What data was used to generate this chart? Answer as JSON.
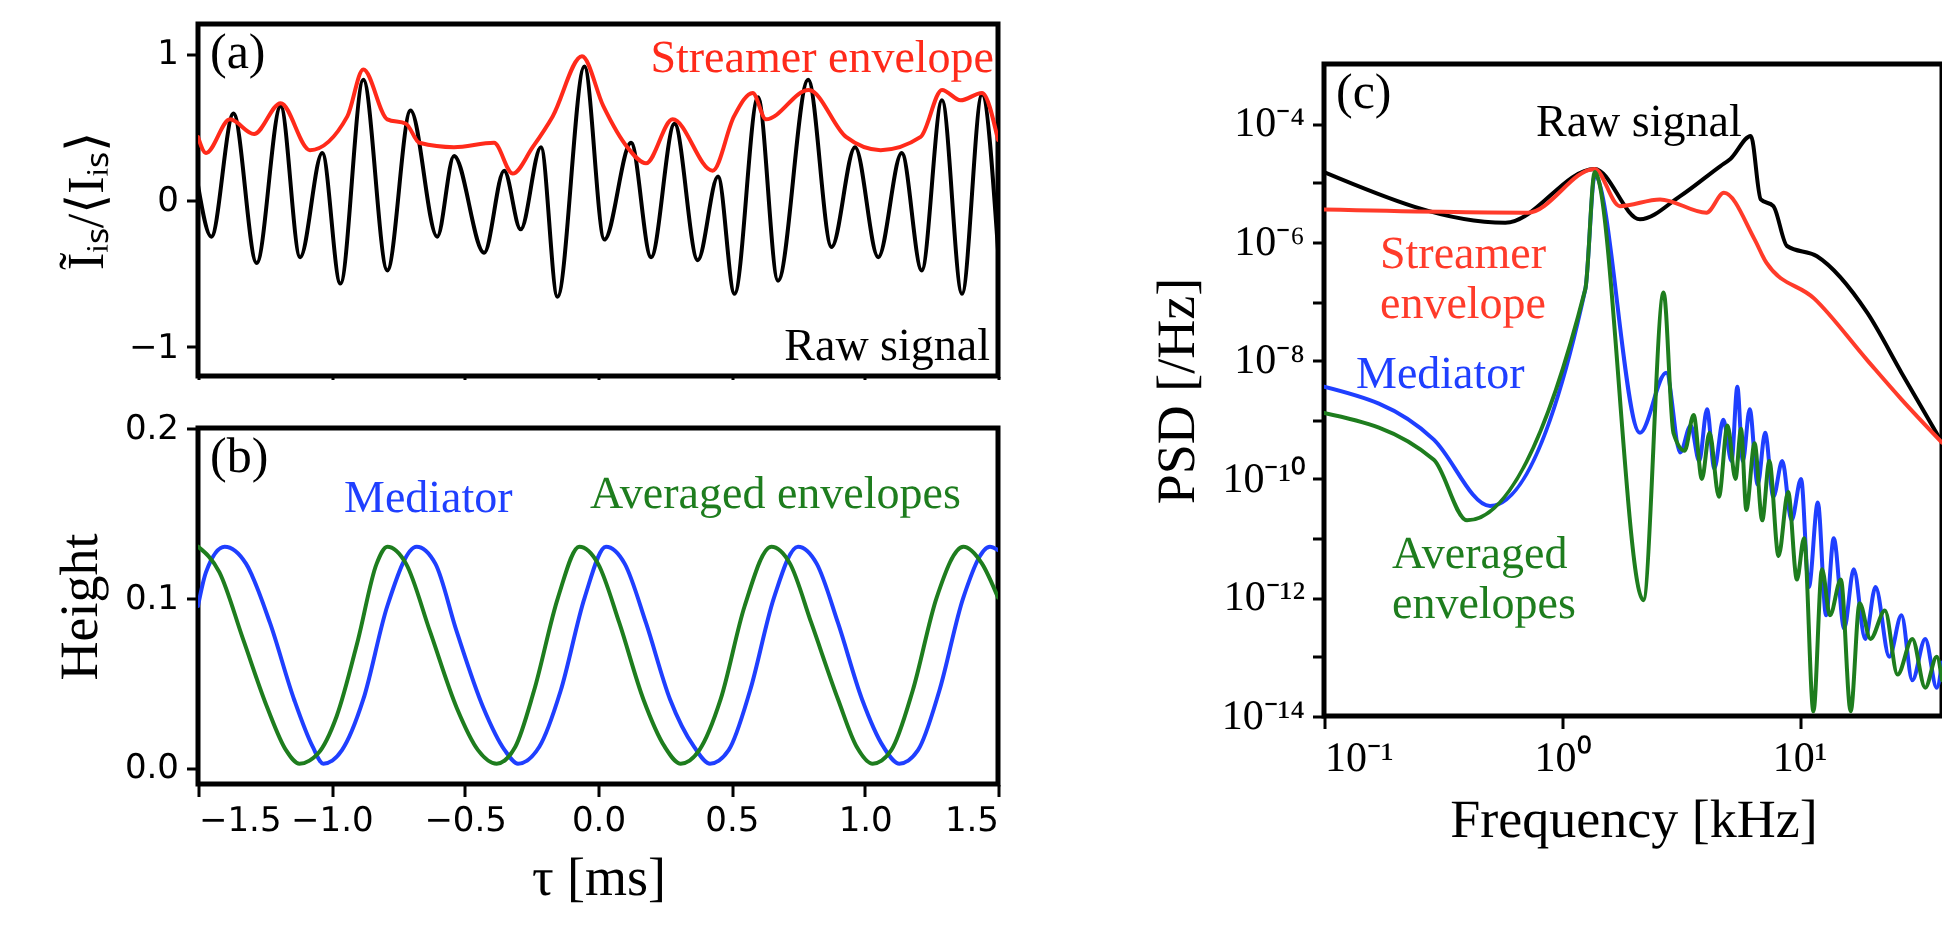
{
  "chart_data": [
    {
      "type": "line",
      "ylabel": "Ĩᵢₛ/⟨Iᵢₛ⟩",
      "annotations": [
        "(a)"
      ],
      "xlim": [
        -1.5,
        1.5
      ],
      "xticks": [
        -1.5,
        -1,
        -0.5,
        0,
        0.5,
        1,
        1.5
      ],
      "ylim": [
        -1.2,
        1.2
      ],
      "yticks": [
        {
          "value": -1,
          "label": "−1"
        },
        0,
        1
      ],
      "tick_labels": "y",
      "legend": false,
      "grid": false,
      "marker": "none",
      "line_style": "solid",
      "series": [
        {
          "name": "Raw signal",
          "color": "#000000",
          "x": [
            -1.5,
            -1.45,
            -1.367,
            -1.28,
            -1.19,
            -1.117,
            -1.034,
            -0.966,
            -0.88,
            -0.79,
            -0.703,
            -0.603,
            -0.54,
            -0.427,
            -0.352,
            -0.29,
            -0.214,
            -0.152,
            -0.051,
            0.024,
            0.124,
            0.199,
            0.287,
            0.374,
            0.45,
            0.512,
            0.6,
            0.675,
            0.788,
            0.876,
            0.964,
            1.051,
            1.139,
            1.214,
            1.29,
            1.365,
            1.44,
            1.5
          ],
          "values": [
            0.1,
            -0.25,
            0.59,
            -0.43,
            0.64,
            -0.39,
            0.32,
            -0.57,
            0.82,
            -0.48,
            0.61,
            -0.25,
            0.3,
            -0.36,
            0.2,
            -0.2,
            0.36,
            -0.66,
            0.91,
            -0.27,
            0.39,
            -0.39,
            0.52,
            -0.41,
            0.16,
            -0.64,
            0.7,
            -0.55,
            0.82,
            -0.32,
            0.36,
            -0.39,
            0.32,
            -0.48,
            0.68,
            -0.64,
            0.72,
            -0.34
          ]
        },
        {
          "name": "Streamer envelope",
          "color": "#ff2a1a",
          "x": [
            -1.5,
            -1.47,
            -1.38,
            -1.29,
            -1.19,
            -1.08,
            -0.94,
            -0.88,
            -0.79,
            -0.72,
            -0.67,
            -0.54,
            -0.39,
            -0.32,
            -0.245,
            -0.17,
            -0.06,
            0.02,
            0.11,
            0.18,
            0.28,
            0.43,
            0.51,
            0.58,
            0.63,
            0.79,
            0.93,
            1.06,
            1.21,
            1.29,
            1.36,
            1.44,
            1.5
          ],
          "values": [
            0.43,
            0.32,
            0.55,
            0.45,
            0.66,
            0.34,
            0.57,
            0.89,
            0.55,
            0.52,
            0.39,
            0.36,
            0.39,
            0.18,
            0.36,
            0.57,
            0.98,
            0.64,
            0.36,
            0.25,
            0.55,
            0.2,
            0.57,
            0.73,
            0.55,
            0.75,
            0.43,
            0.34,
            0.43,
            0.75,
            0.68,
            0.73,
            0.41
          ]
        }
      ]
    },
    {
      "type": "line",
      "xlabel": "τ [ms]",
      "ylabel": "Height",
      "annotations": [
        "(b)"
      ],
      "xlim": [
        -1.5,
        1.5
      ],
      "xticks": [
        {
          "value": -1.5,
          "label": "−1.5"
        },
        {
          "value": -1,
          "label": "−1.0"
        },
        {
          "value": -0.5,
          "label": "−0.5"
        },
        {
          "value": 0,
          "label": "0.0"
        },
        {
          "value": 0.5,
          "label": "0.5"
        },
        {
          "value": 1,
          "label": "1.0"
        },
        {
          "value": 1.5,
          "label": "1.5"
        }
      ],
      "ylim": [
        -0.01,
        0.2
      ],
      "yticks": [
        {
          "value": 0,
          "label": "0.0"
        },
        0.1,
        0.2
      ],
      "legend": false,
      "grid": false,
      "marker": "none",
      "line_style": "solid",
      "series": [
        {
          "name": "Mediator",
          "color": "#1f3fff",
          "x": [
            -1.5,
            -1.47,
            -1.4,
            -1.32,
            -1.23,
            -1.14,
            -1.07,
            -1.03,
            -0.96,
            -0.88,
            -0.79,
            -0.68,
            -0.61,
            -0.53,
            -0.43,
            -0.35,
            -0.3,
            -0.22,
            -0.14,
            -0.05,
            0.03,
            0.1,
            0.18,
            0.27,
            0.36,
            0.42,
            0.49,
            0.57,
            0.66,
            0.75,
            0.82,
            0.9,
            0.99,
            1.07,
            1.13,
            1.2,
            1.28,
            1.37,
            1.47,
            1.5
          ],
          "values": [
            0.095,
            0.115,
            0.13,
            0.12,
            0.085,
            0.04,
            0.012,
            0.002,
            0.01,
            0.04,
            0.095,
            0.13,
            0.12,
            0.08,
            0.035,
            0.01,
            0.002,
            0.012,
            0.045,
            0.1,
            0.13,
            0.12,
            0.085,
            0.04,
            0.012,
            0.002,
            0.01,
            0.045,
            0.1,
            0.13,
            0.12,
            0.085,
            0.04,
            0.012,
            0.002,
            0.01,
            0.045,
            0.1,
            0.13,
            0.128
          ]
        },
        {
          "name": "Averaged envelopes",
          "color": "#1e7d1e",
          "x": [
            -1.5,
            -1.42,
            -1.33,
            -1.24,
            -1.17,
            -1.12,
            -1.05,
            -0.98,
            -0.9,
            -0.83,
            -0.79,
            -0.72,
            -0.63,
            -0.53,
            -0.45,
            -0.38,
            -0.31,
            -0.24,
            -0.15,
            -0.07,
            0,
            0.08,
            0.17,
            0.25,
            0.31,
            0.38,
            0.46,
            0.55,
            0.65,
            0.72,
            0.8,
            0.9,
            0.97,
            1.03,
            1.1,
            1.18,
            1.27,
            1.37,
            1.44,
            1.5
          ],
          "values": [
            0.13,
            0.115,
            0.075,
            0.035,
            0.01,
            0.002,
            0.008,
            0.03,
            0.075,
            0.12,
            0.13,
            0.12,
            0.08,
            0.035,
            0.01,
            0.002,
            0.012,
            0.045,
            0.1,
            0.13,
            0.12,
            0.085,
            0.04,
            0.012,
            0.002,
            0.01,
            0.04,
            0.095,
            0.13,
            0.12,
            0.085,
            0.04,
            0.012,
            0.002,
            0.01,
            0.045,
            0.1,
            0.13,
            0.12,
            0.1
          ]
        }
      ]
    },
    {
      "type": "line",
      "xlabel": "Frequency [kHz]",
      "ylabel": "PSD [/Hz]",
      "annotations": [
        "(c)"
      ],
      "log": "xy",
      "xlim": [
        0.1,
        40
      ],
      "xticks": [
        {
          "value": 0.1,
          "label": "10⁻¹"
        },
        {
          "value": 1,
          "label": "10⁰"
        },
        {
          "value": 10,
          "label": "10¹"
        }
      ],
      "ylim": [
        1e-14,
        0.001
      ],
      "yticks": [
        {
          "value": 1e-14,
          "label": "10⁻¹⁴"
        },
        {
          "value": 1e-13,
          "label": null
        },
        {
          "value": 1e-12,
          "label": "10⁻¹²"
        },
        {
          "value": 1e-11,
          "label": null
        },
        {
          "value": 1e-10,
          "label": "10⁻¹⁰"
        },
        {
          "value": 1e-09,
          "label": null
        },
        {
          "value": 1e-08,
          "label": "10⁻⁸"
        },
        {
          "value": 1e-07,
          "label": null
        },
        {
          "value": 1e-06,
          "label": "10⁻⁶"
        },
        {
          "value": 1e-05,
          "label": null
        },
        {
          "value": 0.0001,
          "label": "10⁻⁴"
        }
      ],
      "legend": false,
      "grid": false,
      "marker": "none",
      "line_style": "solid",
      "series": [
        {
          "name": "Raw signal",
          "color": "#000000",
          "x": [
            0.1,
            0.58,
            1.38,
            2.14,
            3.16,
            4.67,
            5.14,
            6.27,
            6.9,
            7.8,
            8.9,
            11.9,
            19.4,
            27,
            40
          ],
          "values": [
            1.5e-05,
            2.1e-06,
            1.7e-05,
            2.4e-06,
            5.9e-06,
            1.9e-05,
            2.5e-05,
            6.1e-05,
            5.2e-06,
            4e-06,
            8.5e-07,
            5.7e-07,
            6.3e-08,
            6.2e-09,
            4.1e-10
          ]
        },
        {
          "name": "Streamer envelope",
          "color": "#ff3b2a",
          "x": [
            0.1,
            0.72,
            1.38,
            1.76,
            2.6,
            4.08,
            4.83,
            6.5,
            7.3,
            11.6,
            19.4,
            27,
            40
          ],
          "values": [
            3.5e-06,
            3.1e-06,
            1.7e-05,
            4e-06,
            5.2e-06,
            3.1e-06,
            6.7e-06,
            1.1e-06,
            4.4e-07,
            1.1e-07,
            1e-08,
            2.2e-09,
            4.1e-10
          ]
        },
        {
          "name": "Mediator",
          "color": "#1f3fff",
          "x": [
            0.1,
            0.29,
            0.5,
            1.26,
            1.38,
            2.14,
            2.76,
            3.16,
            3.5,
            3.8,
            4.1,
            4.4,
            4.8,
            5.2,
            5.5,
            5.8,
            6.2,
            6.7,
            7.2,
            7.8,
            8.5,
            9.3,
            10.2,
            11,
            12,
            13,
            14,
            15.5,
            17,
            19,
            21,
            24,
            27,
            30,
            34,
            38,
            40
          ],
          "values": [
            3.6e-09,
            4.6e-10,
            3.5e-11,
            1.6e-07,
            1.3e-05,
            6e-10,
            6.2e-09,
            2.8e-10,
            8e-10,
            2e-10,
            1.5e-09,
            1.5e-10,
            1e-09,
            2e-10,
            3.6e-09,
            2e-10,
            1.5e-09,
            8e-11,
            6e-10,
            5e-11,
            2e-10,
            2e-11,
            1e-10,
            1.5e-12,
            4e-11,
            5e-13,
            1e-11,
            3e-13,
            3e-12,
            2e-13,
            1.5e-12,
            1e-13,
            5e-13,
            4e-14,
            2e-13,
            3e-14,
            8e-14
          ]
        },
        {
          "name": "Averaged envelopes",
          "color": "#1e7d1e",
          "x": [
            0.1,
            0.29,
            0.4,
            1.26,
            1.38,
            2.21,
            2.69,
            2.96,
            3.3,
            3.6,
            3.9,
            4.2,
            4.6,
            5,
            5.4,
            5.7,
            6,
            6.5,
            7,
            7.5,
            8.2,
            9,
            9.8,
            10.5,
            11.5,
            12.5,
            13.5,
            15,
            16.5,
            18,
            20,
            23,
            26,
            30,
            34,
            38,
            40
          ],
          "values": [
            1.3e-09,
            2.1e-10,
            2e-11,
            1.6e-07,
            1.5e-05,
            9e-13,
            1.4e-07,
            6e-10,
            3e-10,
            1.2e-09,
            1e-10,
            6e-10,
            5e-11,
            8e-10,
            1e-10,
            7e-10,
            3e-11,
            4e-10,
            2e-11,
            2e-10,
            5e-12,
            6e-11,
            2e-12,
            1e-11,
            1.2e-14,
            3e-12,
            5e-13,
            2e-12,
            1.2e-14,
            8e-13,
            2e-13,
            6e-13,
            5e-14,
            2e-13,
            3e-14,
            1e-13,
            4e-14
          ]
        }
      ]
    }
  ]
}
